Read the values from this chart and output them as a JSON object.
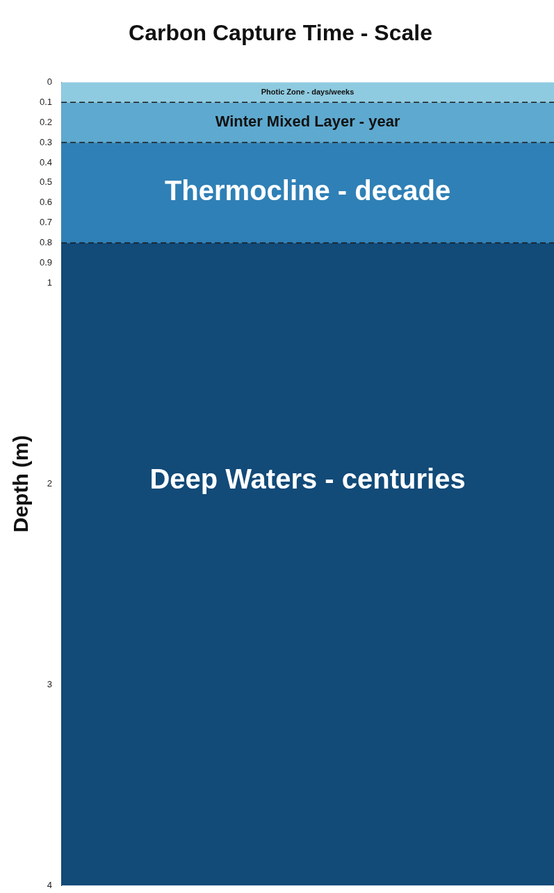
{
  "chart_data": {
    "type": "bar",
    "stacked": true,
    "title": "Carbon Capture Time - Scale",
    "ylabel": "Depth (m)",
    "categories": [
      null
    ],
    "series": [
      {
        "name": "Photic Zone - days/weeks",
        "color": "#8fcbe0",
        "values": [
          0.1
        ]
      },
      {
        "name": "Winter Mixed Layer - year",
        "color": "#5ea9cf",
        "values": [
          0.2
        ]
      },
      {
        "name": "Thermocline - decade",
        "color": "#2f80b6",
        "values": [
          0.5
        ]
      },
      {
        "name": "Deep Waters - centuries",
        "color": "#124a78",
        "values": [
          3.2
        ]
      }
    ],
    "ylim": [
      4,
      0
    ],
    "yticks": [
      0,
      0.1,
      0.2,
      0.3,
      0.4,
      0.5,
      0.6,
      0.7,
      0.8,
      0.9,
      1,
      2,
      3,
      4
    ],
    "ref_lines": [
      {
        "axis": "y",
        "value": 0.1,
        "color": "#1a1a1a",
        "line_style": "dashed"
      },
      {
        "axis": "y",
        "value": 0.3,
        "color": "#1a1a1a",
        "line_style": "dashed"
      },
      {
        "axis": "y",
        "value": 0.8,
        "color": "#1a1a1a",
        "line_style": "dashed"
      }
    ],
    "grid": false,
    "legend": false,
    "tick_labels": "y"
  }
}
